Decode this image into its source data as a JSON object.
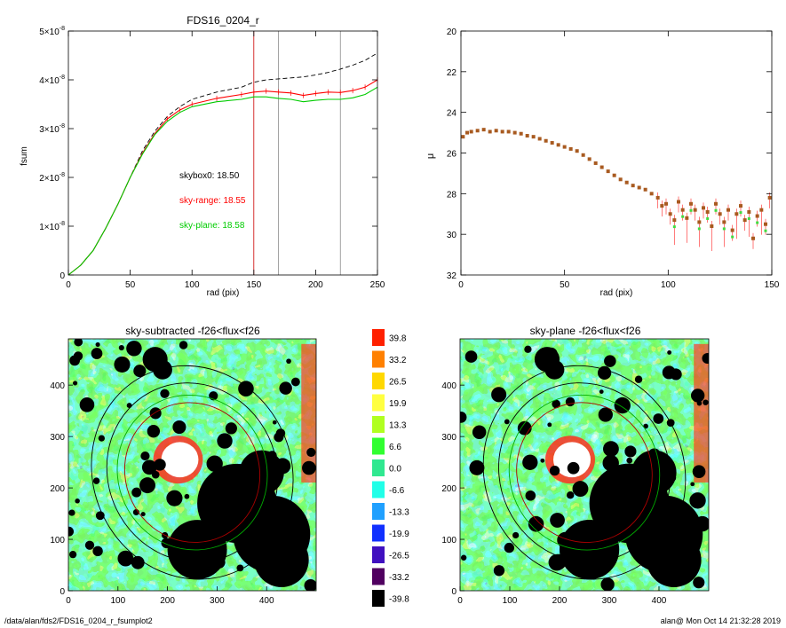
{
  "chart_data": [
    {
      "type": "line",
      "title": "FDS16_0204_r",
      "xlabel": "rad (pix)",
      "ylabel": "fsum",
      "xlim": [
        0,
        250
      ],
      "ylim": [
        0,
        5e-08
      ],
      "x_ticks": [
        "0",
        "50",
        "100",
        "150",
        "200",
        "250"
      ],
      "y_ticks": [
        {
          "mant": "0",
          "exp": ""
        },
        {
          "mant": "1×10",
          "exp": "-8"
        },
        {
          "mant": "2×10",
          "exp": "-8"
        },
        {
          "mant": "3×10",
          "exp": "-8"
        },
        {
          "mant": "4×10",
          "exp": "-8"
        },
        {
          "mant": "5×10",
          "exp": "-8"
        }
      ],
      "x": [
        0,
        10,
        20,
        30,
        40,
        50,
        60,
        70,
        80,
        90,
        100,
        120,
        140,
        150,
        160,
        170,
        180,
        190,
        200,
        210,
        220,
        230,
        240,
        250
      ],
      "series": [
        {
          "key": "skybox0",
          "color": "#000000",
          "dashed": true,
          "values": [
            0,
            2e-09,
            5e-09,
            9.5e-09,
            1.45e-08,
            2e-08,
            2.55e-08,
            2.95e-08,
            3.25e-08,
            3.45e-08,
            3.6e-08,
            3.75e-08,
            3.85e-08,
            3.95e-08,
            4e-08,
            4.02e-08,
            4.04e-08,
            4.06e-08,
            4.1e-08,
            4.15e-08,
            4.22e-08,
            4.3e-08,
            4.4e-08,
            4.55e-08
          ]
        },
        {
          "key": "sky-range",
          "color": "#ff0000",
          "dashed": false,
          "values": [
            0,
            2e-09,
            5e-09,
            9.5e-09,
            1.45e-08,
            2e-08,
            2.5e-08,
            2.9e-08,
            3.2e-08,
            3.38e-08,
            3.5e-08,
            3.62e-08,
            3.7e-08,
            3.75e-08,
            3.77e-08,
            3.75e-08,
            3.73e-08,
            3.68e-08,
            3.72e-08,
            3.75e-08,
            3.74e-08,
            3.78e-08,
            3.85e-08,
            4e-08
          ]
        },
        {
          "key": "sky-plane",
          "color": "#00cc00",
          "dashed": false,
          "values": [
            0,
            2e-09,
            5e-09,
            9.5e-09,
            1.45e-08,
            2e-08,
            2.48e-08,
            2.88e-08,
            3.15e-08,
            3.33e-08,
            3.45e-08,
            3.55e-08,
            3.6e-08,
            3.65e-08,
            3.65e-08,
            3.62e-08,
            3.6e-08,
            3.55e-08,
            3.58e-08,
            3.6e-08,
            3.6e-08,
            3.63e-08,
            3.7e-08,
            3.85e-08
          ]
        }
      ],
      "vlines": [
        {
          "x": 150,
          "color": "#cc0000"
        },
        {
          "x": 170,
          "color": "#888888"
        },
        {
          "x": 220,
          "color": "#888888"
        }
      ],
      "annotations": [
        {
          "text": "skybox0: 18.50",
          "color": "#000000"
        },
        {
          "text": "sky-range: 18.55",
          "color": "#ff0000"
        },
        {
          "text": "sky-plane: 18.58",
          "color": "#00cc00"
        }
      ],
      "grid": false,
      "legend": "none"
    },
    {
      "type": "scatter",
      "title": "",
      "xlabel": "rad (pix)",
      "ylabel": "μ",
      "xlim": [
        0,
        150
      ],
      "ylim": [
        32,
        20
      ],
      "x_ticks": [
        "0",
        "50",
        "100",
        "150"
      ],
      "y_ticks": [
        "20",
        "22",
        "24",
        "26",
        "28",
        "30",
        "32"
      ],
      "points": [
        [
          1,
          25.2
        ],
        [
          3,
          25.0
        ],
        [
          5,
          24.95
        ],
        [
          8,
          24.9
        ],
        [
          11,
          24.85
        ],
        [
          14,
          24.95
        ],
        [
          17,
          24.9
        ],
        [
          20,
          24.95
        ],
        [
          23,
          24.95
        ],
        [
          26,
          25.0
        ],
        [
          29,
          25.05
        ],
        [
          32,
          25.15
        ],
        [
          35,
          25.2
        ],
        [
          38,
          25.3
        ],
        [
          41,
          25.4
        ],
        [
          44,
          25.5
        ],
        [
          47,
          25.6
        ],
        [
          50,
          25.7
        ],
        [
          53,
          25.8
        ],
        [
          56,
          25.9
        ],
        [
          59,
          26.1
        ],
        [
          62,
          26.3
        ],
        [
          65,
          26.5
        ],
        [
          68,
          26.7
        ],
        [
          71,
          26.9
        ],
        [
          74,
          27.1
        ],
        [
          77,
          27.3
        ],
        [
          80,
          27.45
        ],
        [
          83,
          27.6
        ],
        [
          86,
          27.7
        ],
        [
          89,
          27.8
        ],
        [
          92,
          28.0
        ],
        [
          95,
          28.2
        ],
        [
          97,
          28.6
        ],
        [
          99,
          28.5
        ],
        [
          101,
          29.0
        ],
        [
          103,
          29.3
        ],
        [
          105,
          28.4
        ],
        [
          107,
          28.8
        ],
        [
          109,
          29.2
        ],
        [
          111,
          28.5
        ],
        [
          113,
          28.8
        ],
        [
          115,
          29.4
        ],
        [
          117,
          28.7
        ],
        [
          119,
          28.9
        ],
        [
          121,
          29.6
        ],
        [
          123,
          28.5
        ],
        [
          125,
          29.0
        ],
        [
          127,
          29.4
        ],
        [
          129,
          28.8
        ],
        [
          131,
          29.8
        ],
        [
          133,
          29.0
        ],
        [
          135,
          28.6
        ],
        [
          137,
          29.3
        ],
        [
          139,
          28.9
        ],
        [
          141,
          30.2
        ],
        [
          143,
          29.1
        ],
        [
          145,
          28.8
        ],
        [
          147,
          29.5
        ],
        [
          149,
          28.2
        ]
      ],
      "grid": false,
      "legend": "none"
    },
    {
      "type": "heatmap",
      "title": "sky-subtracted -f26<flux<f26",
      "xlim": [
        0,
        500
      ],
      "ylim": [
        0,
        490
      ],
      "x_ticks": [
        "0",
        "100",
        "200",
        "300",
        "400"
      ],
      "y_ticks": [
        "0",
        "100",
        "200",
        "300",
        "400"
      ]
    },
    {
      "type": "heatmap",
      "title": "sky-plane -f26<flux<f26",
      "xlim": [
        0,
        500
      ],
      "ylim": [
        0,
        490
      ],
      "x_ticks": [
        "0",
        "100",
        "200",
        "300",
        "400"
      ],
      "y_ticks": [
        "0",
        "100",
        "200",
        "300",
        "400"
      ]
    }
  ],
  "colorbar": {
    "levels": [
      {
        "label": "39.8",
        "color": "#ff2000"
      },
      {
        "label": "33.2",
        "color": "#ff8000"
      },
      {
        "label": "26.5",
        "color": "#ffd800"
      },
      {
        "label": "19.9",
        "color": "#ffff40"
      },
      {
        "label": "13.3",
        "color": "#b0ff20"
      },
      {
        "label": "6.6",
        "color": "#30ff30"
      },
      {
        "label": "0.0",
        "color": "#30e890"
      },
      {
        "label": "-6.6",
        "color": "#20ffe8"
      },
      {
        "label": "-13.3",
        "color": "#20a0ff"
      },
      {
        "label": "-19.9",
        "color": "#1030ff"
      },
      {
        "label": "-26.5",
        "color": "#4010c0"
      },
      {
        "label": "-33.2",
        "color": "#500060"
      },
      {
        "label": "-39.8",
        "color": "#000000"
      }
    ]
  },
  "footer": {
    "path": "/data/alan/fds2/FDS16_0204_r_fsumplot2",
    "stamp": "alan@  Mon Oct 14 21:32:28 2019"
  }
}
